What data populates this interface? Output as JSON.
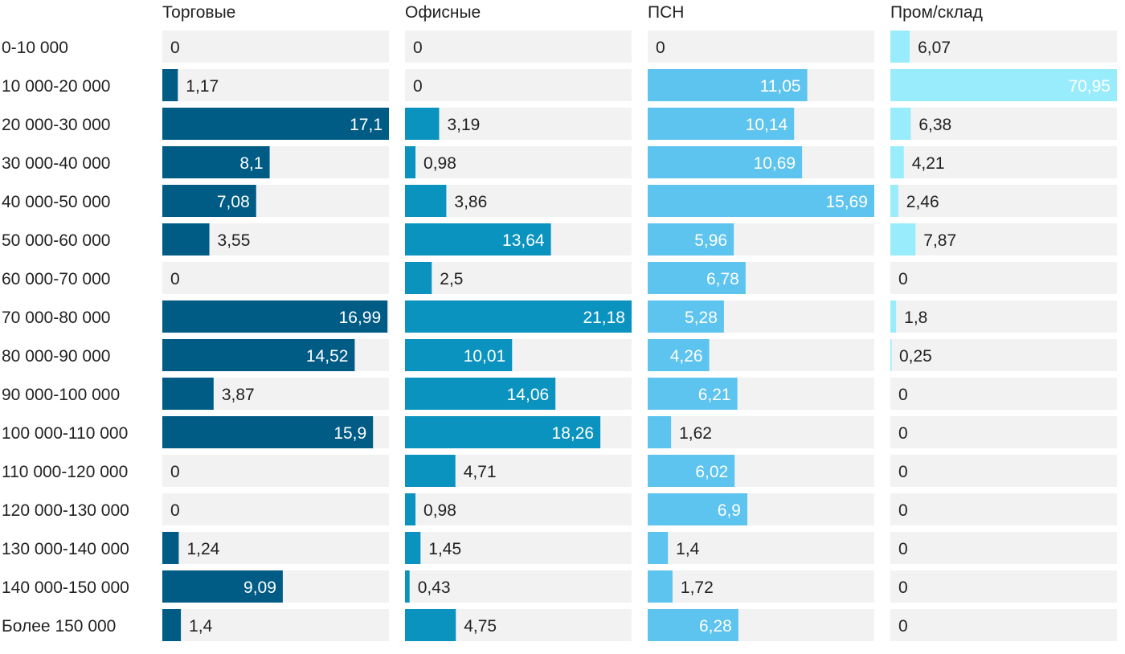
{
  "chart_data": {
    "type": "bar",
    "orientation": "horizontal",
    "layout": "small-multiples",
    "decimal_separator": ",",
    "categories": [
      "0-10 000",
      "10 000-20 000",
      "20 000-30 000",
      "30 000-40 000",
      "40 000-50 000",
      "50 000-60 000",
      "60 000-70 000",
      "70 000-80 000",
      "80 000-90 000",
      "90 000-100 000",
      "100 000-110 000",
      "110 000-120 000",
      "120 000-130 000",
      "130 000-140 000",
      "140 000-150 000",
      "Более 150 000"
    ],
    "series": [
      {
        "name": "Торговые",
        "color": "#005b85",
        "max": 17.1,
        "values": [
          0,
          1.17,
          17.1,
          8.1,
          7.08,
          3.55,
          0,
          16.99,
          14.52,
          3.87,
          15.9,
          0,
          0,
          1.24,
          9.09,
          1.4
        ]
      },
      {
        "name": "Офисные",
        "color": "#0a93bf",
        "max": 21.18,
        "values": [
          0,
          0,
          3.19,
          0.98,
          3.86,
          13.64,
          2.5,
          21.18,
          10.01,
          14.06,
          18.26,
          4.71,
          0.98,
          1.45,
          0.43,
          4.75
        ]
      },
      {
        "name": "ПСН",
        "color": "#5dc3ef",
        "max": 15.69,
        "values": [
          0,
          11.05,
          10.14,
          10.69,
          15.69,
          5.96,
          6.78,
          5.28,
          4.26,
          6.21,
          1.62,
          6.02,
          6.9,
          1.4,
          1.72,
          6.28
        ]
      },
      {
        "name": "Пром/склад",
        "color": "#99ecfc",
        "max": 70.95,
        "values": [
          6.07,
          70.95,
          6.38,
          4.21,
          2.46,
          7.87,
          0,
          1.8,
          0.25,
          0,
          0,
          0,
          0,
          0,
          0,
          0
        ]
      }
    ],
    "colors": {
      "track": "#f2f2f2",
      "label_dark": "#222222",
      "label_light": "#ffffff"
    }
  }
}
